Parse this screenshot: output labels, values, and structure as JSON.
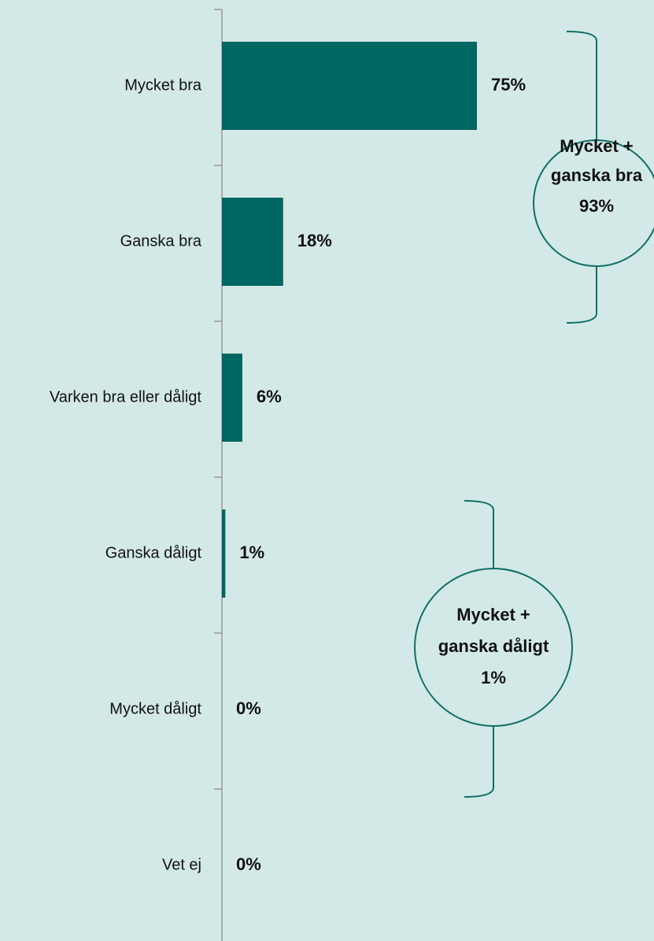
{
  "chart_data": {
    "type": "bar",
    "orientation": "horizontal",
    "categories": [
      "Mycket bra",
      "Ganska bra",
      "Varken bra eller dåligt",
      "Ganska dåligt",
      "Mycket dåligt",
      "Vet ej"
    ],
    "values": [
      75,
      18,
      6,
      1,
      0,
      0
    ],
    "value_labels": [
      "75%",
      "18%",
      "6%",
      "1%",
      "0%",
      "0%"
    ],
    "color": "#006661",
    "annotations": [
      {
        "text": [
          "Mycket +",
          "ganska bra",
          "93%"
        ]
      },
      {
        "text": [
          "Mycket +",
          "ganska dåligt",
          "1%"
        ]
      }
    ]
  }
}
